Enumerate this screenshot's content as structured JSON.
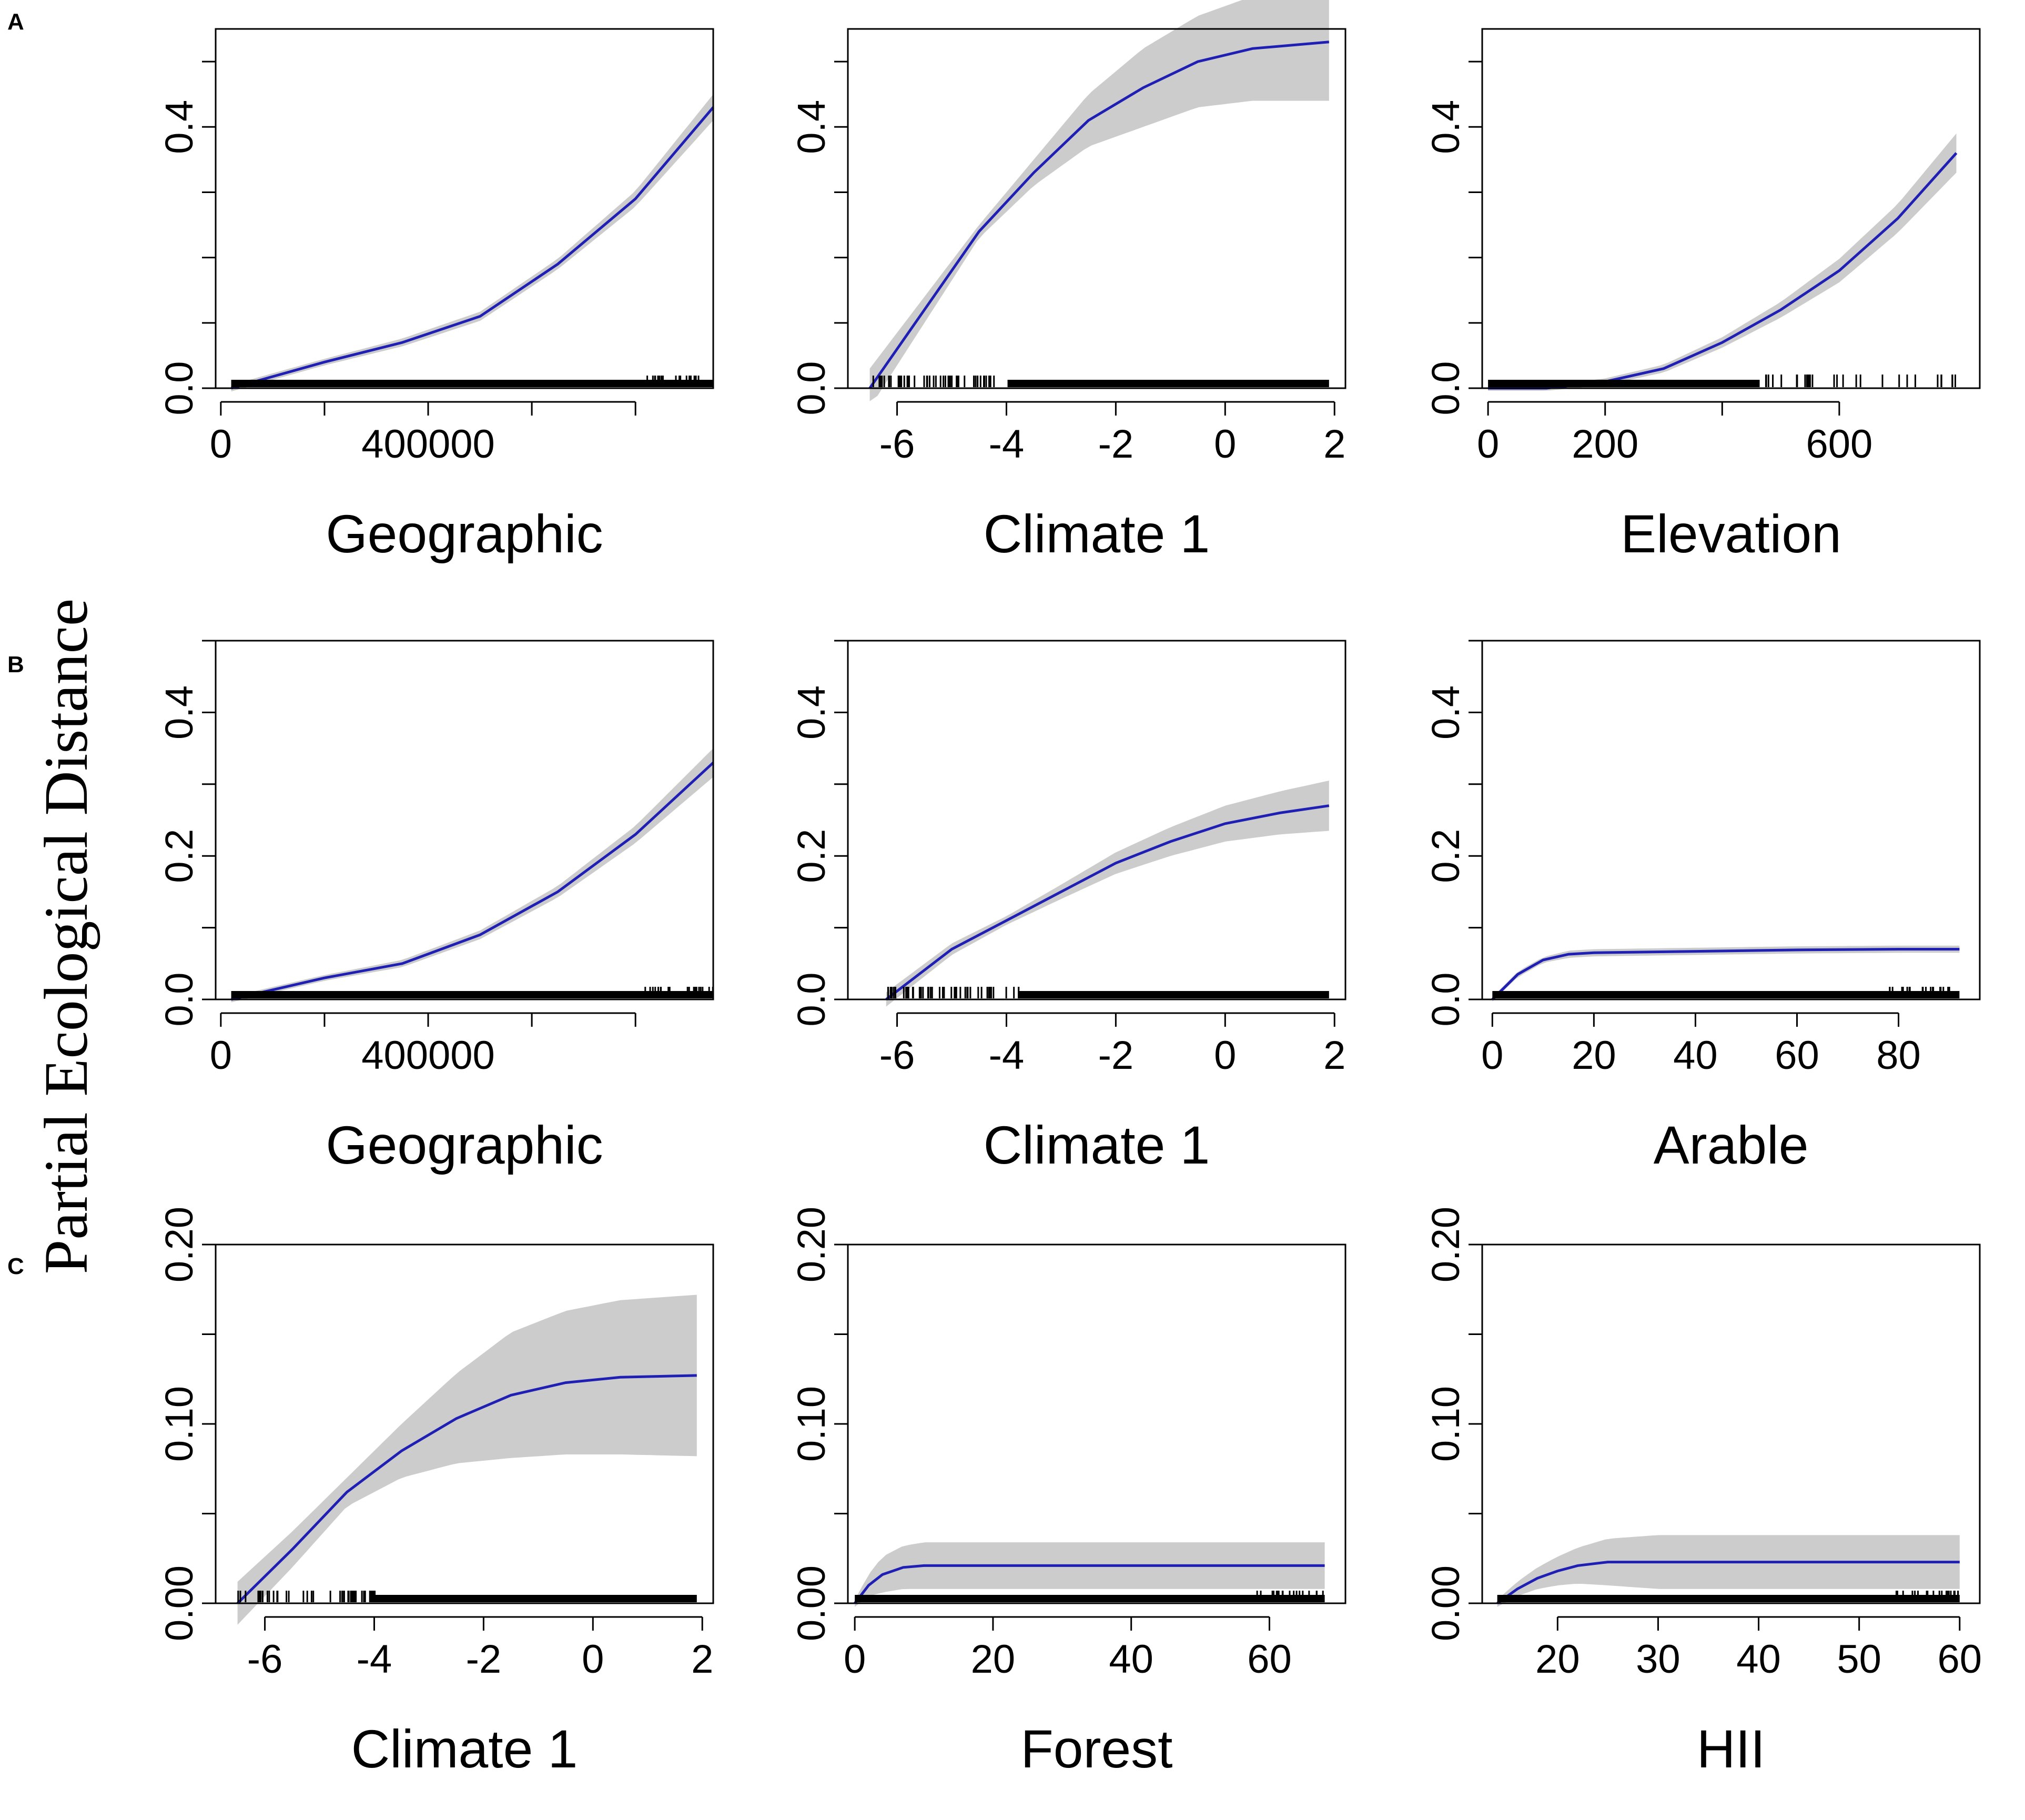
{
  "ylabel": "Partial Ecological Distance",
  "colors": {
    "curve": "#1f1fb4",
    "band": "#cccccc",
    "axis": "#000000",
    "rug": "#000000"
  },
  "rows": [
    {
      "letter": "A",
      "ylim": [
        0,
        0.55
      ],
      "yticks": [
        0.0,
        0.1,
        0.2,
        0.3,
        0.4,
        0.5
      ],
      "yticklabels": [
        "0.0",
        "",
        "",
        "",
        "0.4",
        ""
      ]
    },
    {
      "letter": "B",
      "ylim": [
        0,
        0.5
      ],
      "yticks": [
        0.0,
        0.1,
        0.2,
        0.3,
        0.4,
        0.5
      ],
      "yticklabels": [
        "0.0",
        "",
        "0.2",
        "",
        "0.4",
        ""
      ]
    },
    {
      "letter": "C",
      "ylim": [
        0,
        0.2
      ],
      "yticks": [
        0.0,
        0.05,
        0.1,
        0.15,
        0.2
      ],
      "yticklabels": [
        "0.00",
        "",
        "0.10",
        "",
        "0.20"
      ]
    }
  ],
  "chart_data": [
    {
      "type": "line",
      "row": "A",
      "xlabel": "Geographic",
      "xlim": [
        -10000,
        950000
      ],
      "xticks": [
        0,
        200000,
        400000,
        600000,
        800000
      ],
      "xticklabels": [
        "0",
        "",
        "400000",
        "",
        ""
      ],
      "x": [
        20000,
        200000,
        350000,
        500000,
        650000,
        800000,
        950000
      ],
      "y": [
        0.0,
        0.04,
        0.07,
        0.11,
        0.19,
        0.29,
        0.43
      ],
      "band_width": [
        0.005,
        0.005,
        0.006,
        0.007,
        0.008,
        0.012,
        0.02
      ],
      "rug": "dense"
    },
    {
      "type": "line",
      "row": "A",
      "xlabel": "Climate 1",
      "xlim": [
        -6.9,
        2.2
      ],
      "xticks": [
        -6,
        -4,
        -2,
        0,
        2
      ],
      "xticklabels": [
        "-6",
        "-4",
        "-2",
        "0",
        "2"
      ],
      "x": [
        -6.5,
        -5.5,
        -4.5,
        -3.5,
        -2.5,
        -1.5,
        -0.5,
        0.5,
        1.9
      ],
      "y": [
        0.0,
        0.12,
        0.24,
        0.33,
        0.41,
        0.46,
        0.5,
        0.52,
        0.53
      ],
      "band_width": [
        0.03,
        0.02,
        0.01,
        0.02,
        0.04,
        0.06,
        0.07,
        0.08,
        0.09
      ],
      "rug": "sparse"
    },
    {
      "type": "line",
      "row": "A",
      "xlabel": "Elevation",
      "xlim": [
        -10,
        840
      ],
      "xticks": [
        0,
        200,
        400,
        600
      ],
      "xticklabels": [
        "0",
        "200",
        "",
        "600"
      ],
      "x": [
        0,
        100,
        200,
        300,
        400,
        500,
        600,
        700,
        800
      ],
      "y": [
        0.0,
        0.0,
        0.01,
        0.03,
        0.07,
        0.12,
        0.18,
        0.26,
        0.36
      ],
      "band_width": [
        0.004,
        0.004,
        0.005,
        0.006,
        0.008,
        0.012,
        0.018,
        0.022,
        0.03
      ],
      "rug": "dense-left"
    },
    {
      "type": "line",
      "row": "B",
      "xlabel": "Geographic",
      "xlim": [
        -10000,
        950000
      ],
      "xticks": [
        0,
        200000,
        400000,
        600000,
        800000
      ],
      "xticklabels": [
        "0",
        "",
        "400000",
        "",
        ""
      ],
      "x": [
        20000,
        200000,
        350000,
        500000,
        650000,
        800000,
        950000
      ],
      "y": [
        0.0,
        0.03,
        0.05,
        0.09,
        0.15,
        0.23,
        0.33
      ],
      "band_width": [
        0.004,
        0.004,
        0.005,
        0.006,
        0.008,
        0.012,
        0.02
      ],
      "rug": "dense"
    },
    {
      "type": "line",
      "row": "B",
      "xlabel": "Climate 1",
      "xlim": [
        -6.9,
        2.2
      ],
      "xticks": [
        -6,
        -4,
        -2,
        0,
        2
      ],
      "xticklabels": [
        "-6",
        "-4",
        "-2",
        "0",
        "2"
      ],
      "x": [
        -6.2,
        -5.0,
        -4.0,
        -3.0,
        -2.0,
        -1.0,
        0.0,
        1.0,
        1.9
      ],
      "y": [
        0.0,
        0.07,
        0.11,
        0.15,
        0.19,
        0.22,
        0.245,
        0.26,
        0.27
      ],
      "band_width": [
        0.01,
        0.008,
        0.006,
        0.01,
        0.015,
        0.02,
        0.025,
        0.03,
        0.035
      ],
      "rug": "sparse"
    },
    {
      "type": "line",
      "row": "B",
      "xlabel": "Arable",
      "xlim": [
        -2,
        96
      ],
      "xticks": [
        0,
        20,
        40,
        60,
        80
      ],
      "xticklabels": [
        "0",
        "20",
        "40",
        "60",
        "80"
      ],
      "x": [
        0,
        5,
        10,
        15,
        20,
        40,
        60,
        80,
        92
      ],
      "y": [
        0.0,
        0.035,
        0.055,
        0.063,
        0.065,
        0.067,
        0.069,
        0.07,
        0.07
      ],
      "band_width": [
        0.003,
        0.004,
        0.004,
        0.005,
        0.005,
        0.005,
        0.005,
        0.005,
        0.005
      ],
      "rug": "dense"
    },
    {
      "type": "line",
      "row": "C",
      "xlabel": "Climate 1",
      "xlim": [
        -6.9,
        2.2
      ],
      "xticks": [
        -6,
        -4,
        -2,
        0,
        2
      ],
      "xticklabels": [
        "-6",
        "-4",
        "-2",
        "0",
        "2"
      ],
      "x": [
        -6.5,
        -5.5,
        -4.5,
        -3.5,
        -2.5,
        -1.5,
        -0.5,
        0.5,
        1.9
      ],
      "y": [
        0.0,
        0.03,
        0.062,
        0.085,
        0.103,
        0.116,
        0.123,
        0.126,
        0.127
      ],
      "band_width": [
        0.012,
        0.01,
        0.008,
        0.015,
        0.025,
        0.035,
        0.04,
        0.043,
        0.045
      ],
      "rug": "sparse"
    },
    {
      "type": "line",
      "row": "C",
      "xlabel": "Forest",
      "xlim": [
        -1,
        71
      ],
      "xticks": [
        0,
        20,
        40,
        60
      ],
      "xticklabels": [
        "0",
        "20",
        "40",
        "60"
      ],
      "x": [
        0,
        2,
        4,
        7,
        10,
        20,
        40,
        60,
        68
      ],
      "y": [
        0.0,
        0.01,
        0.016,
        0.02,
        0.021,
        0.021,
        0.021,
        0.021,
        0.021
      ],
      "band_width": [
        0.002,
        0.006,
        0.01,
        0.012,
        0.013,
        0.013,
        0.013,
        0.013,
        0.013
      ],
      "rug": "dense"
    },
    {
      "type": "line",
      "row": "C",
      "xlabel": "HII",
      "xlim": [
        12.5,
        62
      ],
      "xticks": [
        20,
        30,
        40,
        50,
        60
      ],
      "xticklabels": [
        "20",
        "30",
        "40",
        "50",
        "60"
      ],
      "x": [
        14,
        16,
        18,
        20,
        22,
        25,
        30,
        40,
        50,
        60
      ],
      "y": [
        0.0,
        0.008,
        0.014,
        0.018,
        0.021,
        0.023,
        0.023,
        0.023,
        0.023,
        0.023
      ],
      "band_width": [
        0.002,
        0.004,
        0.006,
        0.008,
        0.01,
        0.013,
        0.015,
        0.015,
        0.015,
        0.015
      ],
      "rug": "dense"
    }
  ]
}
